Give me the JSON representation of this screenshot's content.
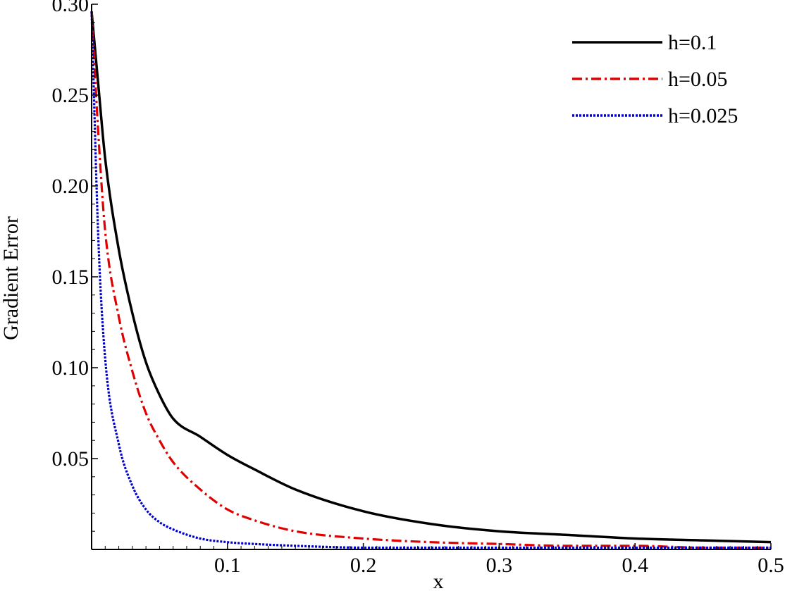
{
  "chart_data": {
    "type": "line",
    "title": "",
    "xlabel": "x",
    "ylabel": "Gradient Error",
    "xlim": [
      0.0,
      0.5
    ],
    "ylim": [
      0.0,
      0.3
    ],
    "grid": false,
    "legend_position": "top-right",
    "x_ticks": [
      0.1,
      0.2,
      0.3,
      0.4,
      0.5
    ],
    "x_tick_labels": [
      "0.1",
      "0.2",
      "0.3",
      "0.4",
      "0.5"
    ],
    "y_ticks": [
      0.05,
      0.1,
      0.15,
      0.2,
      0.25,
      0.3
    ],
    "y_tick_labels": [
      "0.05",
      "0.10",
      "0.15",
      "0.20",
      "0.25",
      "0.30"
    ],
    "x": [
      0.0,
      0.005,
      0.01,
      0.02,
      0.03,
      0.04,
      0.05,
      0.06,
      0.08,
      0.1,
      0.12,
      0.15,
      0.2,
      0.25,
      0.3,
      0.35,
      0.4,
      0.45,
      0.5
    ],
    "series": [
      {
        "name": "h=0.1",
        "color": "#000000",
        "dash": "solid",
        "values": [
          0.296,
          0.255,
          0.215,
          0.165,
          0.13,
          0.103,
          0.085,
          0.072,
          0.062,
          0.052,
          0.044,
          0.033,
          0.021,
          0.014,
          0.01,
          0.008,
          0.006,
          0.005,
          0.004
        ]
      },
      {
        "name": "h=0.05",
        "color": "#e00000",
        "dash": "dashdot",
        "values": [
          0.296,
          0.228,
          0.175,
          0.128,
          0.098,
          0.075,
          0.06,
          0.048,
          0.033,
          0.022,
          0.016,
          0.01,
          0.006,
          0.004,
          0.003,
          0.002,
          0.002,
          0.001,
          0.001
        ]
      },
      {
        "name": "h=0.025",
        "color": "#0000cc",
        "dash": "dotted",
        "values": [
          0.296,
          0.17,
          0.105,
          0.058,
          0.035,
          0.022,
          0.015,
          0.011,
          0.006,
          0.004,
          0.003,
          0.002,
          0.001,
          0.001,
          0.001,
          0.001,
          0.001,
          0.001,
          0.001
        ]
      }
    ]
  }
}
